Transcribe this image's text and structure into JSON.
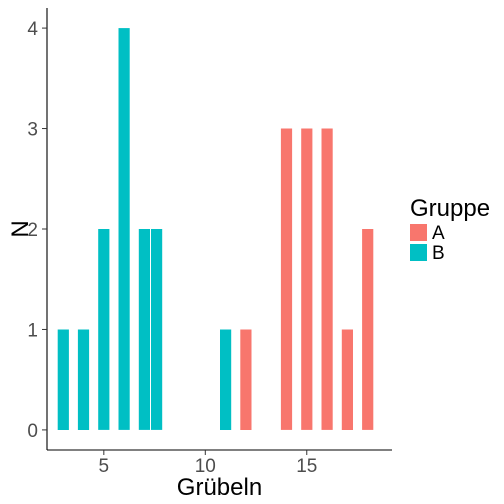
{
  "chart_data": {
    "type": "bar",
    "title": "",
    "xlabel": "Grübeln",
    "ylabel": "N",
    "xlim": [
      2.2,
      19.2
    ],
    "ylim": [
      -0.2,
      4.2
    ],
    "x_ticks": [
      5,
      10,
      15
    ],
    "y_ticks": [
      0,
      1,
      2,
      3,
      4
    ],
    "grid": false,
    "bar_width": 0.55,
    "legend": {
      "title": "Gruppe",
      "position": "right"
    },
    "series": [
      {
        "name": "A",
        "color": "#F8766D",
        "points": [
          {
            "x": 12,
            "y": 1
          },
          {
            "x": 14,
            "y": 3
          },
          {
            "x": 15,
            "y": 3
          },
          {
            "x": 16,
            "y": 3
          },
          {
            "x": 17,
            "y": 1
          },
          {
            "x": 18,
            "y": 2
          }
        ]
      },
      {
        "name": "B",
        "color": "#00BFC4",
        "points": [
          {
            "x": 3,
            "y": 1
          },
          {
            "x": 4,
            "y": 1
          },
          {
            "x": 5,
            "y": 2
          },
          {
            "x": 6,
            "y": 4
          },
          {
            "x": 7,
            "y": 2
          },
          {
            "x": 7.6,
            "y": 2
          },
          {
            "x": 11,
            "y": 1
          }
        ]
      }
    ]
  }
}
